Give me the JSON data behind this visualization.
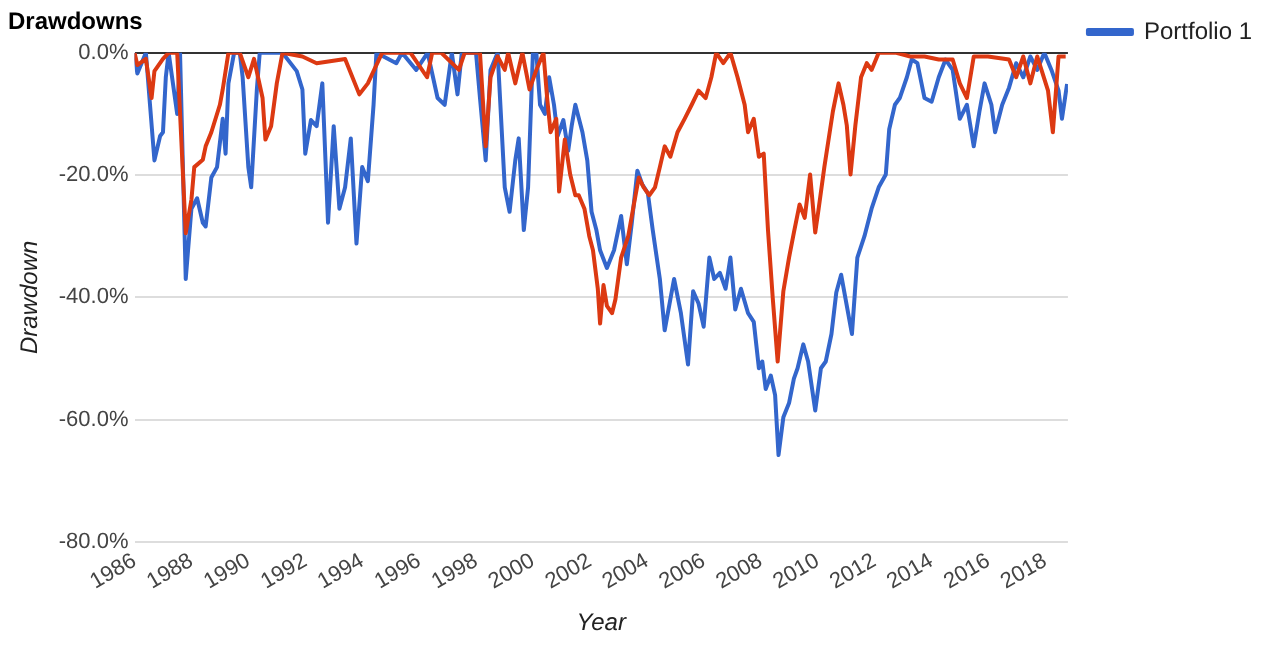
{
  "chart_data": {
    "type": "line",
    "title": "Drawdowns",
    "xlabel": "Year",
    "ylabel": "Drawdown",
    "xlim": [
      1986,
      2018.8
    ],
    "xticks": [
      1986,
      1988,
      1990,
      1992,
      1994,
      1996,
      1998,
      2000,
      2002,
      2004,
      2006,
      2008,
      2010,
      2012,
      2014,
      2016,
      2018
    ],
    "ylim": [
      -80,
      0
    ],
    "yticks": [
      {
        "value": -80,
        "label": "-80.0%"
      },
      {
        "value": -60,
        "label": "-60.0%"
      },
      {
        "value": -40,
        "label": "-40.0%"
      },
      {
        "value": -20,
        "label": "-20.0%"
      },
      {
        "value": 0,
        "label": "0.0%"
      }
    ],
    "grid": "y",
    "legend": "right",
    "marker": "none",
    "line_style": "solid",
    "series": [
      {
        "name": "Portfolio 1",
        "color": "#3366cc",
        "x": [
          1986.0,
          1986.1,
          1986.4,
          1986.7,
          1986.9,
          1987.0,
          1987.1,
          1987.2,
          1987.5,
          1987.6,
          1987.8,
          1988.0,
          1988.2,
          1988.4,
          1988.5,
          1988.7,
          1988.9,
          1989.1,
          1989.2,
          1989.3,
          1989.5,
          1989.7,
          1989.8,
          1990.0,
          1990.1,
          1990.3,
          1990.4,
          1991.2,
          1991.7,
          1991.9,
          1992.0,
          1992.2,
          1992.4,
          1992.6,
          1992.8,
          1993.0,
          1993.2,
          1993.4,
          1993.6,
          1993.8,
          1994.0,
          1994.2,
          1994.4,
          1994.5,
          1995.2,
          1995.4,
          1995.9,
          1996.3,
          1996.65,
          1996.9,
          1997.15,
          1997.35,
          1997.5,
          1998.0,
          1998.14,
          1998.34,
          1998.51,
          1998.76,
          1999.01,
          1999.18,
          1999.38,
          1999.5,
          1999.68,
          1999.83,
          2000.0,
          2000.12,
          2000.25,
          2000.42,
          2000.57,
          2000.74,
          2000.87,
          2001.07,
          2001.24,
          2001.36,
          2001.49,
          2001.74,
          2001.91,
          2002.06,
          2002.23,
          2002.36,
          2002.6,
          2002.85,
          2003.1,
          2003.3,
          2003.47,
          2003.67,
          2003.84,
          2004.04,
          2004.21,
          2004.46,
          2004.63,
          2004.83,
          2004.96,
          2005.2,
          2005.45,
          2005.63,
          2005.82,
          2006.0,
          2006.2,
          2006.37,
          2006.57,
          2006.77,
          2006.94,
          2007.11,
          2007.31,
          2007.56,
          2007.76,
          2007.94,
          2008.06,
          2008.18,
          2008.36,
          2008.51,
          2008.63,
          2008.8,
          2009.0,
          2009.17,
          2009.3,
          2009.5,
          2009.67,
          2009.92,
          2010.12,
          2010.29,
          2010.49,
          2010.66,
          2010.83,
          2011.03,
          2011.21,
          2011.4,
          2011.65,
          2011.9,
          2012.15,
          2012.4,
          2012.52,
          2012.72,
          2012.89,
          2013.14,
          2013.31,
          2013.51,
          2013.76,
          2014.01,
          2014.26,
          2014.5,
          2014.75,
          2015.0,
          2015.25,
          2015.49,
          2015.69,
          2015.87,
          2016.11,
          2016.24,
          2016.49,
          2016.73,
          2016.98,
          2017.23,
          2017.48,
          2017.72,
          2017.97,
          2018.22,
          2018.47,
          2018.59,
          2018.77
        ],
        "values": [
          0,
          -3.4,
          0,
          -17.6,
          -13.6,
          -13,
          -4,
          0,
          -10,
          0,
          -37,
          -25.5,
          -23.8,
          -27.8,
          -28.4,
          -20.4,
          -18.7,
          -10.8,
          -16.5,
          -5,
          0,
          0,
          -4,
          -18.7,
          -22,
          -6,
          0,
          0,
          -3,
          -6,
          -16.5,
          -11,
          -12,
          -5,
          -27.8,
          -12,
          -25.5,
          -22,
          -14,
          -31.2,
          -18.7,
          -21,
          -8.5,
          0,
          -1.7,
          0,
          -2.8,
          0,
          -7.4,
          -8.5,
          0,
          -6.8,
          0,
          0,
          -7.4,
          -17.6,
          -2.8,
          0,
          -22,
          -26,
          -17.6,
          -14,
          -29,
          -22,
          0,
          0,
          -8.5,
          -10,
          -4,
          -8.5,
          -13.6,
          -11,
          -16,
          -12,
          -8.5,
          -13,
          -17.6,
          -26,
          -29,
          -32.3,
          -35.2,
          -32.3,
          -26.7,
          -34.6,
          -28,
          -19.3,
          -21.5,
          -23,
          -29,
          -37,
          -45.4,
          -40.3,
          -37,
          -42.6,
          -51,
          -39,
          -41,
          -44.8,
          -33.5,
          -37,
          -36,
          -38.6,
          -33.5,
          -42,
          -38.6,
          -42.6,
          -44,
          -51.6,
          -50.5,
          -55,
          -52.8,
          -56,
          -65.8,
          -59.6,
          -57.3,
          -53.3,
          -51.6,
          -47.7,
          -50.5,
          -58.5,
          -51.6,
          -50.5,
          -46,
          -39.2,
          -36.3,
          -41.4,
          -46,
          -33.5,
          -30,
          -25.5,
          -22,
          -19.9,
          -12.5,
          -8.5,
          -7.4,
          -4,
          -1.1,
          -1.7,
          -7.4,
          -8,
          -4,
          -1.1,
          -2.8,
          -10.8,
          -8.5,
          -15.3,
          -9.6,
          -5,
          -8.5,
          -13,
          -8.5,
          -5.7,
          -1.7,
          -4,
          -0.6,
          -2.8,
          0,
          -2.8,
          -6.2,
          -10.8,
          -5.1
        ]
      },
      {
        "color": "#dc3912",
        "x": [
          1986.0,
          1986.1,
          1986.4,
          1986.6,
          1986.7,
          1987.0,
          1987.2,
          1987.5,
          1987.8,
          1988.0,
          1988.1,
          1988.4,
          1988.5,
          1988.7,
          1989.0,
          1989.1,
          1989.3,
          1989.7,
          1990.0,
          1990.2,
          1990.5,
          1990.6,
          1990.8,
          1991.0,
          1991.2,
          1991.9,
          1992.4,
          1993.4,
          1993.9,
          1994.2,
          1994.4,
          1994.7,
          1995.7,
          1996.28,
          1996.46,
          1996.78,
          1997.4,
          1997.6,
          1998.14,
          1998.34,
          1998.51,
          1998.76,
          1999.01,
          1999.13,
          1999.38,
          1999.63,
          1999.88,
          2000.12,
          2000.37,
          2000.5,
          2000.62,
          2000.82,
          2000.92,
          2001.12,
          2001.31,
          2001.49,
          2001.61,
          2001.81,
          2001.98,
          2002.11,
          2002.28,
          2002.36,
          2002.48,
          2002.6,
          2002.78,
          2002.9,
          2003.1,
          2003.35,
          2003.54,
          2003.72,
          2003.89,
          2004.09,
          2004.29,
          2004.46,
          2004.63,
          2004.83,
          2005.08,
          2005.33,
          2005.58,
          2005.82,
          2006.07,
          2006.27,
          2006.44,
          2006.69,
          2006.94,
          2007.19,
          2007.44,
          2007.56,
          2007.76,
          2007.94,
          2008.11,
          2008.26,
          2008.43,
          2008.6,
          2008.8,
          2009.0,
          2009.17,
          2009.37,
          2009.55,
          2009.74,
          2009.92,
          2010.04,
          2010.24,
          2010.54,
          2010.74,
          2010.91,
          2011.03,
          2011.16,
          2011.33,
          2011.53,
          2011.73,
          2011.9,
          2012.15,
          2012.77,
          2013.26,
          2013.76,
          2014.26,
          2014.75,
          2015.0,
          2015.25,
          2015.49,
          2015.99,
          2016.73,
          2016.98,
          2017.23,
          2017.48,
          2017.72,
          2018.1,
          2018.27,
          2018.47,
          2018.72
        ],
        "values": [
          0,
          -2,
          -1,
          -7.4,
          -3,
          -1,
          0,
          0,
          -29.5,
          -24,
          -18.7,
          -17.5,
          -15.3,
          -13,
          -8.5,
          -6,
          0,
          0,
          -4,
          -1,
          -7.4,
          -14.2,
          -12,
          -5,
          0,
          -0.6,
          -1.7,
          -1,
          -6.8,
          -5,
          -3,
          0,
          0,
          -4,
          0,
          0,
          -2.8,
          0,
          0,
          -15.3,
          -4,
          -0.6,
          -2.8,
          0,
          -5,
          0,
          -6,
          -2.8,
          0,
          -7.4,
          -13,
          -10.8,
          -22.7,
          -14.2,
          -19.9,
          -23.3,
          -23.3,
          -25.5,
          -30,
          -32.3,
          -38.6,
          -44.3,
          -38,
          -41.4,
          -42.6,
          -40.3,
          -33.5,
          -30,
          -25,
          -20.4,
          -22,
          -23.3,
          -22,
          -18.7,
          -15.3,
          -17,
          -13,
          -10.8,
          -8.5,
          -6.2,
          -7.4,
          -4,
          0,
          -1.7,
          0,
          -4,
          -8.5,
          -13,
          -10.8,
          -17,
          -16.5,
          -29,
          -40.3,
          -50.5,
          -39,
          -33.5,
          -29.4,
          -24.8,
          -27,
          -19.9,
          -29.4,
          -25.5,
          -18.7,
          -9.6,
          -5,
          -8.5,
          -11.9,
          -19.9,
          -11.9,
          -4,
          -1.7,
          -2.8,
          0,
          0,
          -0.6,
          -0.6,
          -1.1,
          -1.1,
          -5,
          -7.4,
          -0.6,
          -0.6,
          -1.1,
          -4,
          -0.6,
          -5,
          -0.6,
          -6.2,
          -13,
          -0.6,
          -0.6
        ]
      }
    ]
  }
}
